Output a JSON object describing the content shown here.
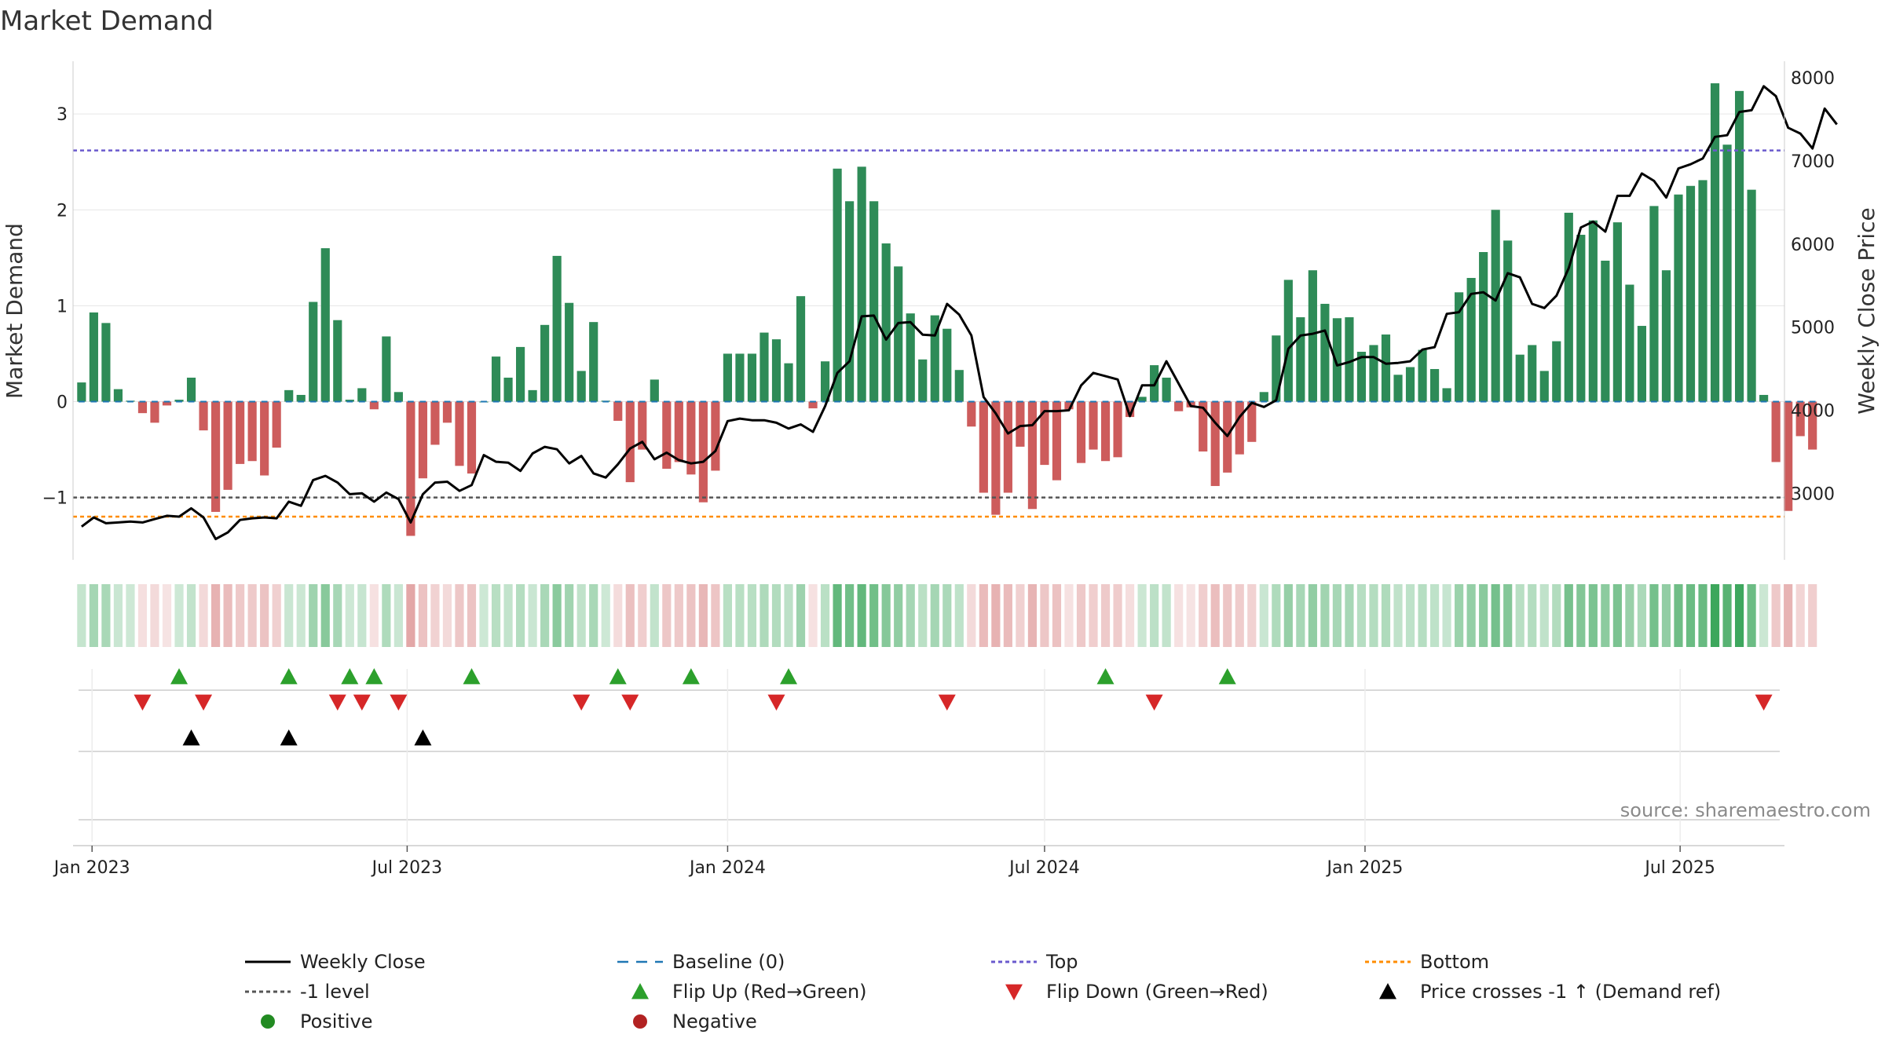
{
  "chart_data": {
    "type": "bar",
    "title": "Market Demand",
    "ylabel": "Market Demand",
    "y2label": "Weekly Close Price",
    "ylim": [
      -1.65,
      3.55
    ],
    "y2lim": [
      2200,
      8200
    ],
    "yticks": [
      -1,
      0,
      1,
      2,
      3
    ],
    "ytick_labels": [
      "−1",
      "0",
      "1",
      "2",
      "3"
    ],
    "y2ticks": [
      3000,
      4000,
      5000,
      6000,
      7000,
      8000
    ],
    "y2tick_labels": [
      "3000",
      "4000",
      "5000",
      "6000",
      "7000",
      "8000"
    ],
    "x_start": "2022-12-26",
    "x_interval_days": 7,
    "xlim_weeks": [
      -0.7,
      139.7
    ],
    "x_ticks": [
      {
        "label": "Jan 2023",
        "week": 0.86
      },
      {
        "label": "Jul 2023",
        "week": 26.71
      },
      {
        "label": "Jan 2024",
        "week": 53.0
      },
      {
        "label": "Jul 2024",
        "week": 79.0
      },
      {
        "label": "Jan 2025",
        "week": 105.29
      },
      {
        "label": "Jul 2025",
        "week": 131.14
      }
    ],
    "demand": [
      0.2,
      0.93,
      0.82,
      0.13,
      0.01,
      -0.12,
      -0.22,
      -0.04,
      0.02,
      0.25,
      -0.3,
      -1.15,
      -0.92,
      -0.65,
      -0.62,
      -0.77,
      -0.48,
      0.12,
      0.07,
      1.04,
      1.6,
      0.85,
      0.02,
      0.14,
      -0.08,
      0.68,
      0.1,
      -1.4,
      -0.8,
      -0.45,
      -0.22,
      -0.67,
      -0.75,
      0.0,
      0.47,
      0.25,
      0.57,
      0.12,
      0.8,
      1.52,
      1.03,
      0.32,
      0.83,
      0.01,
      -0.2,
      -0.84,
      -0.5,
      0.23,
      -0.7,
      -0.63,
      -0.76,
      -1.05,
      -0.72,
      0.5,
      0.5,
      0.5,
      0.72,
      0.65,
      0.4,
      1.1,
      -0.07,
      0.42,
      2.43,
      2.09,
      2.45,
      2.09,
      1.65,
      1.41,
      0.92,
      0.44,
      0.9,
      0.76,
      0.33,
      -0.26,
      -0.95,
      -1.18,
      -0.95,
      -0.47,
      -1.12,
      -0.66,
      -0.82,
      -0.08,
      -0.64,
      -0.5,
      -0.62,
      -0.58,
      -0.16,
      0.05,
      0.38,
      0.25,
      -0.1,
      -0.06,
      -0.52,
      -0.88,
      -0.74,
      -0.55,
      -0.42,
      0.1,
      0.69,
      1.27,
      0.88,
      1.37,
      1.02,
      0.87,
      0.88,
      0.52,
      0.59,
      0.7,
      0.28,
      0.36,
      0.54,
      0.34,
      0.14,
      1.14,
      1.29,
      1.56,
      2.0,
      1.68,
      0.49,
      0.59,
      0.32,
      0.63,
      1.97,
      1.74,
      1.89,
      1.47,
      1.87,
      1.22,
      0.79,
      2.04,
      1.37,
      2.16,
      2.25,
      2.31,
      3.32,
      2.68,
      3.24,
      2.21,
      0.07,
      -0.63,
      -1.14,
      -0.36,
      -0.5
    ],
    "price": [
      2600,
      2710,
      2640,
      2650,
      2660,
      2650,
      2690,
      2730,
      2720,
      2820,
      2710,
      2450,
      2530,
      2680,
      2700,
      2710,
      2700,
      2900,
      2850,
      3160,
      3210,
      3130,
      2990,
      3000,
      2900,
      3010,
      2930,
      2650,
      2990,
      3130,
      3140,
      3030,
      3100,
      3460,
      3380,
      3370,
      3270,
      3480,
      3560,
      3530,
      3360,
      3450,
      3240,
      3190,
      3350,
      3540,
      3620,
      3410,
      3490,
      3400,
      3360,
      3380,
      3510,
      3870,
      3900,
      3880,
      3880,
      3850,
      3780,
      3830,
      3740,
      4050,
      4450,
      4590,
      5130,
      5140,
      4850,
      5050,
      5060,
      4910,
      4900,
      5280,
      5150,
      4900,
      4160,
      3960,
      3720,
      3810,
      3820,
      3990,
      3990,
      4000,
      4300,
      4450,
      4410,
      4370,
      3930,
      4300,
      4300,
      4590,
      4320,
      4050,
      4030,
      3850,
      3690,
      3920,
      4090,
      4040,
      4120,
      4740,
      4900,
      4920,
      4960,
      4540,
      4580,
      4640,
      4640,
      4560,
      4570,
      4590,
      4730,
      4760,
      5160,
      5180,
      5400,
      5420,
      5320,
      5650,
      5600,
      5280,
      5230,
      5380,
      5710,
      6200,
      6270,
      6150,
      6580,
      6580,
      6850,
      6760,
      6560,
      6910,
      6960,
      7030,
      7290,
      7310,
      7590,
      7610,
      7900,
      7780,
      7400,
      7330,
      7150,
      7630,
      7440
    ],
    "baseline": 0,
    "top": 2.62,
    "minus_one_level": -1,
    "bottom": -1.2,
    "flip_up_weeks": [
      8,
      17,
      22,
      24,
      32,
      44,
      50,
      58,
      84,
      94
    ],
    "flip_down_weeks": [
      5,
      10,
      21,
      23,
      26,
      41,
      45,
      57,
      71,
      88,
      138
    ],
    "price_cross_weeks": [
      9,
      17,
      28
    ],
    "source": "source: sharemaestro.com",
    "colors": {
      "positive_bar": "#2e8b57",
      "negative_bar": "#cd5c5c",
      "price_line": "#000000",
      "baseline": "#1f77b4",
      "top": "#6a5acd",
      "minus_one": "#555555",
      "bottom": "#ff8c00",
      "flip_up": "#2ca02c",
      "flip_down": "#d62728",
      "cross": "#000000",
      "positive_dot": "#228b22",
      "negative_dot": "#b22222",
      "grid": "#e6e6e6"
    },
    "legend": [
      {
        "label": "Weekly Close",
        "symbol": "line",
        "color": "#000000"
      },
      {
        "label": "Baseline (0)",
        "symbol": "dashed",
        "color": "#1f77b4"
      },
      {
        "label": "Top",
        "symbol": "dotted",
        "color": "#6a5acd"
      },
      {
        "label": "Bottom",
        "symbol": "dotted",
        "color": "#ff8c00"
      },
      {
        "label": "-1 level",
        "symbol": "dotted",
        "color": "#555555"
      },
      {
        "label": "Flip Up (Red→Green)",
        "symbol": "triangle-up",
        "color": "#2ca02c"
      },
      {
        "label": "Flip Down (Green→Red)",
        "symbol": "triangle-down",
        "color": "#d62728"
      },
      {
        "label": "Price crosses -1 ↑ (Demand ref)",
        "symbol": "triangle-up",
        "color": "#000000"
      },
      {
        "label": "Positive",
        "symbol": "dot",
        "color": "#228b22"
      },
      {
        "label": "Negative",
        "symbol": "dot",
        "color": "#b22222"
      }
    ]
  }
}
